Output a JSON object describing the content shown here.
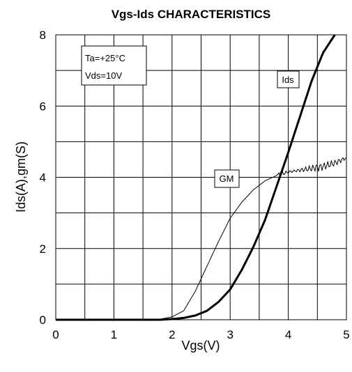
{
  "chart_data": {
    "type": "line",
    "title": "Vgs-Ids CHARACTERISTICS",
    "xlabel": "Vgs(V)",
    "ylabel": "Ids(A),gm(S)",
    "xlim": [
      0,
      5
    ],
    "ylim": [
      0,
      8
    ],
    "x_ticks": [
      "0",
      "1",
      "2",
      "3",
      "4",
      "5"
    ],
    "y_ticks": [
      "0",
      "2",
      "4",
      "6",
      "8"
    ],
    "grid": true,
    "conditions": [
      "Ta=+25°C",
      "Vds=10V"
    ],
    "series": [
      {
        "name": "Ids",
        "line": "thick",
        "x": [
          0,
          1.8,
          2.0,
          2.2,
          2.4,
          2.6,
          2.8,
          3.0,
          3.2,
          3.4,
          3.6,
          3.8,
          4.0,
          4.2,
          4.4,
          4.6,
          4.8
        ],
        "y": [
          0,
          0,
          0.02,
          0.05,
          0.12,
          0.25,
          0.5,
          0.85,
          1.4,
          2.05,
          2.8,
          3.75,
          4.7,
          5.7,
          6.7,
          7.5,
          8.0
        ]
      },
      {
        "name": "GM",
        "line": "thin-noisy",
        "x": [
          0,
          1.6,
          1.8,
          2.0,
          2.2,
          2.4,
          2.6,
          2.8,
          3.0,
          3.2,
          3.4,
          3.6,
          3.8,
          4.0,
          4.2,
          4.4,
          4.6,
          4.8,
          5.0
        ],
        "y": [
          0,
          0,
          0.02,
          0.08,
          0.25,
          0.8,
          1.5,
          2.2,
          2.85,
          3.3,
          3.65,
          3.9,
          4.05,
          4.15,
          4.2,
          4.25,
          4.3,
          4.4,
          4.55
        ]
      }
    ]
  }
}
